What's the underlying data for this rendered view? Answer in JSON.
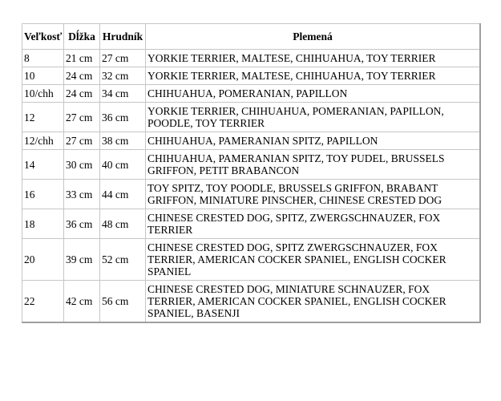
{
  "table": {
    "headers": {
      "size": "Veľkosť",
      "length": "Dĺžka",
      "chest": "Hrudník",
      "breeds": "Plemená"
    },
    "rows": [
      {
        "size": "8",
        "length": "21 cm",
        "chest": "27 cm",
        "breeds": "YORKIE TERRIER, MALTESE, CHIHUAHUA, TOY TERRIER"
      },
      {
        "size": "10",
        "length": "24 cm",
        "chest": "32 cm",
        "breeds": "YORKIE TERRIER, MALTESE, CHIHUAHUA, TOY TERRIER"
      },
      {
        "size": "10/chh",
        "length": "24 cm",
        "chest": "34 cm",
        "breeds": "CHIHUAHUA, POMERANIAN, PAPILLON"
      },
      {
        "size": "12",
        "length": "27 cm",
        "chest": "36 cm",
        "breeds": "YORKIE TERRIER, CHIHUAHUA, POMERANIAN, PAPILLON, POODLE, TOY TERRIER"
      },
      {
        "size": "12/chh",
        "length": "27 cm",
        "chest": "38 cm",
        "breeds": "CHIHUAHUA, PAMERANIAN SPITZ, PAPILLON"
      },
      {
        "size": "14",
        "length": "30 cm",
        "chest": "40 cm",
        "breeds": "CHIHUAHUA, PAMERANIAN SPITZ, TOY PUDEL, BRUSSELS GRIFFON, PETIT BRABANCON"
      },
      {
        "size": "16",
        "length": "33 cm",
        "chest": "44 cm",
        "breeds": "TOY SPITZ, TOY POODLE, BRUSSELS GRIFFON, BRABANT GRIFFON, MINIATURE PINSCHER, CHINESE CRESTED DOG"
      },
      {
        "size": "18",
        "length": "36 cm",
        "chest": "48 cm",
        "breeds": "CHINESE CRESTED DOG, SPITZ, ZWERGSCHNAUZER, FOX TERRIER"
      },
      {
        "size": "20",
        "length": "39 cm",
        "chest": "52 cm",
        "breeds": "CHINESE CRESTED DOG, SPITZ ZWERGSCHNAUZER, FOX TERRIER, AMERICAN COCKER SPANIEL, ENGLISH COCKER SPANIEL"
      },
      {
        "size": "22",
        "length": "42 cm",
        "chest": "56 cm",
        "breeds": "CHINESE CRESTED DOG, MINIATURE SCHNAUZER, FOX TERRIER, AMERICAN COCKER SPANIEL, ENGLISH COCKER SPANIEL, BASENJI"
      }
    ]
  }
}
